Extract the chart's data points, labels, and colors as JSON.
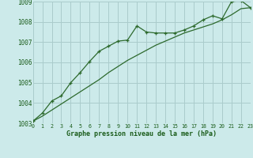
{
  "x": [
    0,
    1,
    2,
    3,
    4,
    5,
    6,
    7,
    8,
    9,
    10,
    11,
    12,
    13,
    14,
    15,
    16,
    17,
    18,
    19,
    20,
    21,
    22,
    23
  ],
  "y_line": [
    1003.1,
    1003.5,
    1004.1,
    1004.35,
    1005.0,
    1005.5,
    1006.05,
    1006.55,
    1006.8,
    1007.05,
    1007.1,
    1007.8,
    1007.5,
    1007.45,
    1007.45,
    1007.45,
    1007.6,
    1007.8,
    1008.1,
    1008.3,
    1008.15,
    1009.0,
    1009.05,
    1008.7
  ],
  "y_smooth": [
    1003.1,
    1003.35,
    1003.65,
    1003.95,
    1004.25,
    1004.55,
    1004.85,
    1005.15,
    1005.5,
    1005.8,
    1006.1,
    1006.35,
    1006.6,
    1006.85,
    1007.05,
    1007.25,
    1007.45,
    1007.6,
    1007.75,
    1007.9,
    1008.1,
    1008.35,
    1008.65,
    1008.7
  ],
  "line_color": "#2d6a2d",
  "bg_color": "#cceaea",
  "grid_color": "#aacccc",
  "text_color": "#1a5c1a",
  "xlabel": "Graphe pression niveau de la mer (hPa)",
  "ylim": [
    1003,
    1009
  ],
  "xlim": [
    0,
    23
  ],
  "yticks": [
    1003,
    1004,
    1005,
    1006,
    1007,
    1008,
    1009
  ],
  "xticks": [
    0,
    1,
    2,
    3,
    4,
    5,
    6,
    7,
    8,
    9,
    10,
    11,
    12,
    13,
    14,
    15,
    16,
    17,
    18,
    19,
    20,
    21,
    22,
    23
  ]
}
